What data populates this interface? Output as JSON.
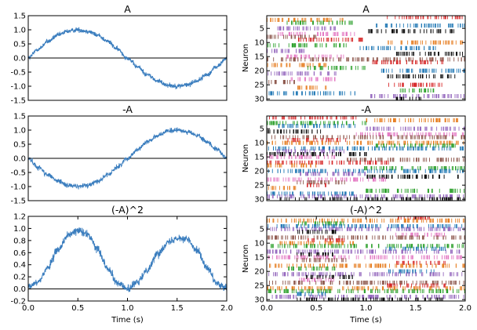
{
  "chart_data": [
    {
      "type": "line",
      "title": "A",
      "xlabel": "",
      "ylabel": "",
      "xlim": [
        0,
        2
      ],
      "ylim": [
        -1.5,
        1.5
      ],
      "yticks": [
        -1.5,
        -1.0,
        -0.5,
        0.0,
        0.5,
        1.0,
        1.5
      ],
      "ytick_labels": [
        "-1.5",
        "-1.0",
        "-0.5",
        "0.0",
        "0.5",
        "1.0",
        "1.5"
      ],
      "xticks": [],
      "xtick_labels": [],
      "zero_line": true,
      "series": [
        {
          "color": "#3a7dbe",
          "x": [
            0,
            0.1,
            0.2,
            0.3,
            0.4,
            0.5,
            0.6,
            0.7,
            0.8,
            0.9,
            1.0,
            1.1,
            1.2,
            1.3,
            1.4,
            1.5,
            1.6,
            1.7,
            1.8,
            1.9,
            2.0
          ],
          "y": [
            0.0,
            0.31,
            0.59,
            0.81,
            0.95,
            1.0,
            0.95,
            0.81,
            0.59,
            0.31,
            0.0,
            -0.31,
            -0.59,
            -0.81,
            -0.95,
            -1.0,
            -0.95,
            -0.81,
            -0.59,
            -0.31,
            0.0
          ],
          "noise": 0.08
        }
      ]
    },
    {
      "type": "raster",
      "title": "A",
      "xlabel": "",
      "ylabel": "Neuron",
      "xlim": [
        0,
        2
      ],
      "ylim": [
        30.5,
        0.5
      ],
      "yticks": [
        5,
        10,
        15,
        20,
        25,
        30
      ],
      "ytick_labels": [
        "5",
        "10",
        "15",
        "20",
        "25",
        "30"
      ],
      "xticks": [],
      "xtick_labels": [],
      "neurons": 30,
      "spike_windows": [
        [
          1.2,
          2.0
        ],
        [
          0.0,
          0.8
        ],
        [
          0.2,
          0.9
        ],
        [
          1.1,
          2.0
        ],
        [
          0.0,
          0.7
        ],
        [
          1.0,
          1.9
        ],
        [
          0.1,
          0.9
        ],
        [
          0.0,
          0.5
        ],
        [
          0.3,
          1.0
        ],
        [
          1.2,
          2.0
        ],
        [
          0.0,
          0.8
        ],
        [
          0.9,
          1.7
        ],
        [
          0.0,
          0.4
        ],
        [
          1.3,
          2.0
        ],
        [
          0.2,
          0.8
        ],
        [
          0.0,
          2.0
        ],
        [
          1.0,
          1.8
        ],
        [
          0.0,
          0.6
        ],
        [
          0.4,
          1.0
        ],
        [
          1.1,
          2.0
        ],
        [
          0.0,
          0.7
        ],
        [
          1.2,
          1.9
        ],
        [
          0.2,
          0.7
        ],
        [
          0.0,
          0.3
        ],
        [
          1.2,
          1.8
        ],
        [
          0.3,
          0.6
        ],
        [
          1.3,
          1.7
        ],
        [
          0.0,
          0.9
        ],
        [
          1.0,
          2.0
        ],
        [
          1.3,
          1.6
        ]
      ]
    },
    {
      "type": "line",
      "title": "-A",
      "xlabel": "",
      "ylabel": "",
      "xlim": [
        0,
        2
      ],
      "ylim": [
        -1.5,
        1.5
      ],
      "yticks": [
        -1.5,
        -1.0,
        -0.5,
        0.0,
        0.5,
        1.0,
        1.5
      ],
      "ytick_labels": [
        "-1.5",
        "-1.0",
        "-0.5",
        "0.0",
        "0.5",
        "1.0",
        "1.5"
      ],
      "xticks": [],
      "xtick_labels": [],
      "zero_line": true,
      "series": [
        {
          "color": "#3a7dbe",
          "x": [
            0,
            0.1,
            0.2,
            0.3,
            0.4,
            0.5,
            0.6,
            0.7,
            0.8,
            0.9,
            1.0,
            1.1,
            1.2,
            1.3,
            1.4,
            1.5,
            1.6,
            1.7,
            1.8,
            1.9,
            2.0
          ],
          "y": [
            0.0,
            -0.31,
            -0.59,
            -0.81,
            -0.95,
            -1.0,
            -0.95,
            -0.81,
            -0.59,
            -0.31,
            0.0,
            0.31,
            0.59,
            0.81,
            0.95,
            1.0,
            0.95,
            0.81,
            0.59,
            0.31,
            0.0
          ],
          "noise": 0.08
        }
      ]
    },
    {
      "type": "raster",
      "title": "-A",
      "xlabel": "",
      "ylabel": "Neuron",
      "xlim": [
        0,
        2
      ],
      "ylim": [
        30.5,
        0.5
      ],
      "yticks": [
        5,
        10,
        15,
        20,
        25,
        30
      ],
      "ytick_labels": [
        "5",
        "10",
        "15",
        "20",
        "25",
        "30"
      ],
      "xticks": [],
      "xtick_labels": [],
      "neurons": 30,
      "spike_windows": [
        [
          0.0,
          0.9
        ],
        [
          1.0,
          2.0
        ],
        [
          0.0,
          1.0
        ],
        [
          0.1,
          0.9
        ],
        [
          1.0,
          2.0
        ],
        [
          0.0,
          0.6
        ],
        [
          0.9,
          2.0
        ],
        [
          0.0,
          2.0
        ],
        [
          0.2,
          0.8
        ],
        [
          0.0,
          2.0
        ],
        [
          1.1,
          1.9
        ],
        [
          0.0,
          2.0
        ],
        [
          0.1,
          0.8
        ],
        [
          0.0,
          1.1
        ],
        [
          0.0,
          0.7
        ],
        [
          0.8,
          2.0
        ],
        [
          0.0,
          1.3
        ],
        [
          0.0,
          0.5
        ],
        [
          0.9,
          2.0
        ],
        [
          0.0,
          2.0
        ],
        [
          0.3,
          1.0
        ],
        [
          1.0,
          2.0
        ],
        [
          0.0,
          1.2
        ],
        [
          0.3,
          0.8
        ],
        [
          0.4,
          0.6
        ],
        [
          0.0,
          0.3
        ],
        [
          1.0,
          2.0
        ],
        [
          0.0,
          0.9
        ],
        [
          0.0,
          2.0
        ],
        [
          0.1,
          2.0
        ]
      ]
    },
    {
      "type": "line",
      "title": "(-A)^2",
      "xlabel": "Time (s)",
      "ylabel": "",
      "xlim": [
        0,
        2
      ],
      "ylim": [
        -0.2,
        1.2
      ],
      "yticks": [
        -0.2,
        0.0,
        0.2,
        0.4,
        0.6,
        0.8,
        1.0,
        1.2
      ],
      "ytick_labels": [
        "-0.2",
        "0.0",
        "0.2",
        "0.4",
        "0.6",
        "0.8",
        "1.0",
        "1.2"
      ],
      "xticks": [
        0.0,
        0.5,
        1.0,
        1.5,
        2.0
      ],
      "xtick_labels": [
        "0.0",
        "0.5",
        "1.0",
        "1.5",
        "2.0"
      ],
      "zero_line": true,
      "series": [
        {
          "color": "#3a7dbe",
          "x": [
            0,
            0.1,
            0.2,
            0.3,
            0.4,
            0.5,
            0.6,
            0.7,
            0.8,
            0.9,
            1.0,
            1.1,
            1.2,
            1.3,
            1.4,
            1.5,
            1.6,
            1.7,
            1.8,
            1.9,
            2.0
          ],
          "y": [
            0.03,
            0.12,
            0.36,
            0.65,
            0.88,
            0.97,
            0.9,
            0.66,
            0.35,
            0.1,
            0.0,
            0.1,
            0.32,
            0.57,
            0.76,
            0.85,
            0.82,
            0.65,
            0.35,
            0.09,
            0.0
          ],
          "noise": 0.06
        }
      ]
    },
    {
      "type": "raster",
      "title": "(-A)^2",
      "xlabel": "Time (s)",
      "ylabel": "Neuron",
      "xlim": [
        0,
        2
      ],
      "ylim": [
        30.5,
        0.5
      ],
      "yticks": [
        5,
        10,
        15,
        20,
        25,
        30
      ],
      "ytick_labels": [
        "5",
        "10",
        "15",
        "20",
        "25",
        "30"
      ],
      "xticks": [
        0.0,
        0.5,
        1.0,
        1.5,
        2.0
      ],
      "xtick_labels": [
        "0.0",
        "0.5",
        "1.0",
        "1.5",
        "2.0"
      ],
      "neurons": 30,
      "spike_windows": [
        [
          1.3,
          1.7
        ],
        [
          0.0,
          2.0
        ],
        [
          0.3,
          0.8
        ],
        [
          0.0,
          2.0
        ],
        [
          0.0,
          2.0
        ],
        [
          0.3,
          0.7
        ],
        [
          1.3,
          1.8
        ],
        [
          0.0,
          2.0
        ],
        [
          0.4,
          0.8
        ],
        [
          0.1,
          0.9
        ],
        [
          0.0,
          2.0
        ],
        [
          1.2,
          1.8
        ],
        [
          0.0,
          2.0
        ],
        [
          0.3,
          0.7
        ],
        [
          0.0,
          2.0
        ],
        [
          0.3,
          0.8
        ],
        [
          1.3,
          1.8
        ],
        [
          0.0,
          2.0
        ],
        [
          0.2,
          0.7
        ],
        [
          1.2,
          1.7
        ],
        [
          0.0,
          2.0
        ],
        [
          0.4,
          0.9
        ],
        [
          0.3,
          0.7
        ],
        [
          0.0,
          2.0
        ],
        [
          1.2,
          1.8
        ],
        [
          0.0,
          2.0
        ],
        [
          0.0,
          2.0
        ],
        [
          0.3,
          0.6
        ],
        [
          0.0,
          2.0
        ],
        [
          0.3,
          1.8
        ]
      ]
    }
  ],
  "raster_palette": [
    "#d62728",
    "#e67e22",
    "#2ca02c",
    "#1f77b4",
    "#9467bd",
    "#000000",
    "#e377c2",
    "#8c564b"
  ]
}
